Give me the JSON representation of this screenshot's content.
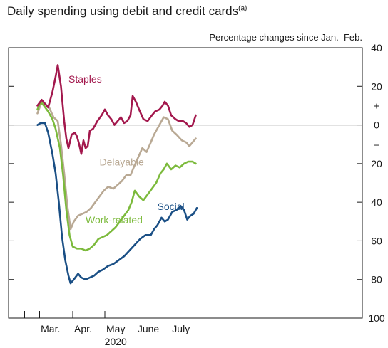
{
  "title": "Daily spending using debit and credit cards",
  "title_note": "(a)",
  "subtitle": "Percentage changes since Jan.–Feb.",
  "chart_data": {
    "type": "line",
    "x_tick_labels": [
      "Mar.",
      "Apr.",
      "May",
      "June",
      "July"
    ],
    "x_year_label": "2020",
    "y_axis_right_labels": [
      "40",
      "20",
      "0",
      "20",
      "40",
      "60",
      "80",
      "100"
    ],
    "y_sign_labels": [
      "+",
      "–"
    ],
    "ylim": [
      -100,
      40
    ],
    "zero_line": true,
    "grid": false,
    "series": [
      {
        "name": "Staples",
        "color": "#a3184d",
        "points": [
          [
            "2020-02-28",
            10
          ],
          [
            "2020-03-03",
            13
          ],
          [
            "2020-03-06",
            11
          ],
          [
            "2020-03-09",
            9
          ],
          [
            "2020-03-13",
            17
          ],
          [
            "2020-03-16",
            25
          ],
          [
            "2020-03-18",
            31
          ],
          [
            "2020-03-21",
            20
          ],
          [
            "2020-03-24",
            2
          ],
          [
            "2020-03-26",
            -7
          ],
          [
            "2020-03-28",
            -12
          ],
          [
            "2020-03-31",
            -5
          ],
          [
            "2020-04-03",
            -4
          ],
          [
            "2020-04-05",
            -6
          ],
          [
            "2020-04-07",
            -10
          ],
          [
            "2020-04-09",
            -15
          ],
          [
            "2020-04-11",
            -8
          ],
          [
            "2020-04-13",
            -12
          ],
          [
            "2020-04-15",
            -11
          ],
          [
            "2020-04-17",
            -3
          ],
          [
            "2020-04-20",
            -2
          ],
          [
            "2020-04-24",
            2
          ],
          [
            "2020-04-28",
            5
          ],
          [
            "2020-05-01",
            8
          ],
          [
            "2020-05-04",
            5
          ],
          [
            "2020-05-07",
            3
          ],
          [
            "2020-05-10",
            0
          ],
          [
            "2020-05-13",
            2
          ],
          [
            "2020-05-16",
            4
          ],
          [
            "2020-05-19",
            1
          ],
          [
            "2020-05-22",
            2
          ],
          [
            "2020-05-25",
            5
          ],
          [
            "2020-05-27",
            15
          ],
          [
            "2020-05-30",
            12
          ],
          [
            "2020-06-02",
            8
          ],
          [
            "2020-06-06",
            3
          ],
          [
            "2020-06-10",
            2
          ],
          [
            "2020-06-14",
            5
          ],
          [
            "2020-06-17",
            7
          ],
          [
            "2020-06-21",
            8
          ],
          [
            "2020-06-24",
            10
          ],
          [
            "2020-06-26",
            12
          ],
          [
            "2020-06-29",
            10
          ],
          [
            "2020-07-02",
            5
          ],
          [
            "2020-07-06",
            3
          ],
          [
            "2020-07-09",
            2
          ],
          [
            "2020-07-13",
            2
          ],
          [
            "2020-07-16",
            1
          ],
          [
            "2020-07-19",
            -1
          ],
          [
            "2020-07-22",
            0
          ],
          [
            "2020-07-25",
            5
          ]
        ]
      },
      {
        "name": "Delayable",
        "color": "#b9a994",
        "points": [
          [
            "2020-02-28",
            6
          ],
          [
            "2020-03-03",
            12
          ],
          [
            "2020-03-06",
            11
          ],
          [
            "2020-03-10",
            9
          ],
          [
            "2020-03-14",
            4
          ],
          [
            "2020-03-18",
            2
          ],
          [
            "2020-03-21",
            -10
          ],
          [
            "2020-03-24",
            -25
          ],
          [
            "2020-03-27",
            -42
          ],
          [
            "2020-03-30",
            -54
          ],
          [
            "2020-04-02",
            -50
          ],
          [
            "2020-04-06",
            -47
          ],
          [
            "2020-04-10",
            -46
          ],
          [
            "2020-04-14",
            -45
          ],
          [
            "2020-04-18",
            -43
          ],
          [
            "2020-04-22",
            -40
          ],
          [
            "2020-04-26",
            -37
          ],
          [
            "2020-04-30",
            -34
          ],
          [
            "2020-05-04",
            -32
          ],
          [
            "2020-05-09",
            -33
          ],
          [
            "2020-05-13",
            -31
          ],
          [
            "2020-05-17",
            -29
          ],
          [
            "2020-05-21",
            -26
          ],
          [
            "2020-05-25",
            -26
          ],
          [
            "2020-05-28",
            -22
          ],
          [
            "2020-06-01",
            -17
          ],
          [
            "2020-06-05",
            -12
          ],
          [
            "2020-06-09",
            -14
          ],
          [
            "2020-06-13",
            -9
          ],
          [
            "2020-06-16",
            -5
          ],
          [
            "2020-06-19",
            -2
          ],
          [
            "2020-06-22",
            1
          ],
          [
            "2020-06-25",
            4
          ],
          [
            "2020-06-29",
            3
          ],
          [
            "2020-07-03",
            -3
          ],
          [
            "2020-07-07",
            -5
          ],
          [
            "2020-07-12",
            -8
          ],
          [
            "2020-07-16",
            -9
          ],
          [
            "2020-07-19",
            -11
          ],
          [
            "2020-07-22",
            -9
          ],
          [
            "2020-07-25",
            -7
          ]
        ]
      },
      {
        "name": "Work-related",
        "color": "#7cba3c",
        "points": [
          [
            "2020-02-28",
            8
          ],
          [
            "2020-03-02",
            12
          ],
          [
            "2020-03-05",
            10
          ],
          [
            "2020-03-09",
            7
          ],
          [
            "2020-03-13",
            3
          ],
          [
            "2020-03-16",
            -2
          ],
          [
            "2020-03-20",
            -12
          ],
          [
            "2020-03-23",
            -26
          ],
          [
            "2020-03-26",
            -44
          ],
          [
            "2020-03-29",
            -57
          ],
          [
            "2020-04-01",
            -63
          ],
          [
            "2020-04-05",
            -64
          ],
          [
            "2020-04-09",
            -64
          ],
          [
            "2020-04-13",
            -65
          ],
          [
            "2020-04-17",
            -64
          ],
          [
            "2020-04-21",
            -62
          ],
          [
            "2020-04-25",
            -59
          ],
          [
            "2020-04-29",
            -58
          ],
          [
            "2020-05-03",
            -57
          ],
          [
            "2020-05-07",
            -55
          ],
          [
            "2020-05-11",
            -53
          ],
          [
            "2020-05-15",
            -50
          ],
          [
            "2020-05-19",
            -47
          ],
          [
            "2020-05-23",
            -44
          ],
          [
            "2020-05-26",
            -40
          ],
          [
            "2020-05-29",
            -34
          ],
          [
            "2020-06-02",
            -37
          ],
          [
            "2020-06-06",
            -39
          ],
          [
            "2020-06-10",
            -36
          ],
          [
            "2020-06-14",
            -33
          ],
          [
            "2020-06-18",
            -30
          ],
          [
            "2020-06-22",
            -25
          ],
          [
            "2020-06-25",
            -23
          ],
          [
            "2020-06-28",
            -20
          ],
          [
            "2020-07-02",
            -23
          ],
          [
            "2020-07-06",
            -21
          ],
          [
            "2020-07-10",
            -22
          ],
          [
            "2020-07-14",
            -20
          ],
          [
            "2020-07-18",
            -19
          ],
          [
            "2020-07-22",
            -19
          ],
          [
            "2020-07-25",
            -20
          ]
        ]
      },
      {
        "name": "Social",
        "color": "#1a4f85",
        "points": [
          [
            "2020-02-28",
            0
          ],
          [
            "2020-03-02",
            1
          ],
          [
            "2020-03-06",
            1
          ],
          [
            "2020-03-09",
            -4
          ],
          [
            "2020-03-13",
            -15
          ],
          [
            "2020-03-16",
            -25
          ],
          [
            "2020-03-19",
            -40
          ],
          [
            "2020-03-22",
            -58
          ],
          [
            "2020-03-25",
            -70
          ],
          [
            "2020-03-28",
            -78
          ],
          [
            "2020-03-30",
            -82
          ],
          [
            "2020-04-02",
            -80
          ],
          [
            "2020-04-06",
            -77
          ],
          [
            "2020-04-09",
            -79
          ],
          [
            "2020-04-13",
            -80
          ],
          [
            "2020-04-17",
            -79
          ],
          [
            "2020-04-21",
            -78
          ],
          [
            "2020-04-25",
            -76
          ],
          [
            "2020-04-29",
            -75
          ],
          [
            "2020-05-04",
            -73
          ],
          [
            "2020-05-09",
            -72
          ],
          [
            "2020-05-14",
            -70
          ],
          [
            "2020-05-19",
            -68
          ],
          [
            "2020-05-24",
            -65
          ],
          [
            "2020-05-29",
            -62
          ],
          [
            "2020-06-03",
            -59
          ],
          [
            "2020-06-08",
            -57
          ],
          [
            "2020-06-13",
            -57
          ],
          [
            "2020-06-16",
            -54
          ],
          [
            "2020-06-19",
            -52
          ],
          [
            "2020-06-23",
            -48
          ],
          [
            "2020-06-26",
            -50
          ],
          [
            "2020-06-29",
            -49
          ],
          [
            "2020-07-03",
            -45
          ],
          [
            "2020-07-07",
            -44
          ],
          [
            "2020-07-11",
            -42
          ],
          [
            "2020-07-14",
            -44
          ],
          [
            "2020-07-17",
            -49
          ],
          [
            "2020-07-20",
            -47
          ],
          [
            "2020-07-23",
            -46
          ],
          [
            "2020-07-26",
            -43
          ]
        ]
      }
    ]
  }
}
